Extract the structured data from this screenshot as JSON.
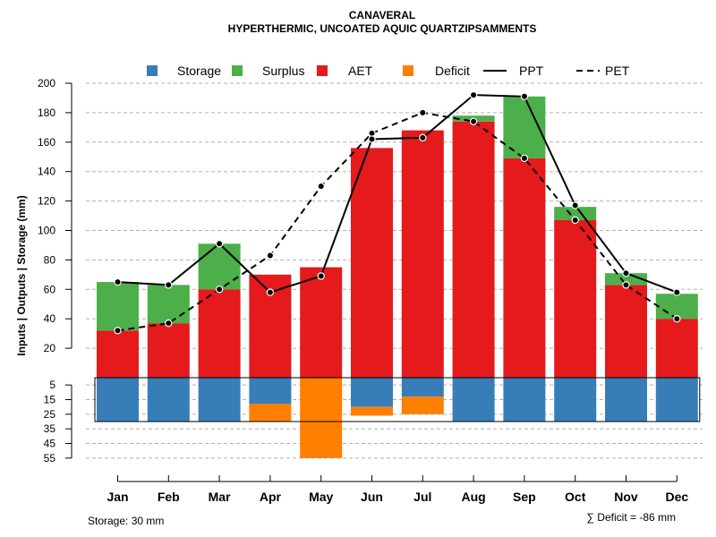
{
  "chart_data": {
    "type": "bar",
    "title": "CANAVERAL",
    "subtitle": "HYPERTHERMIC, UNCOATED AQUIC QUARTZIPSAMMENTS",
    "ylabel": "Inputs | Outputs | Storage    (mm)",
    "categories": [
      "Jan",
      "Feb",
      "Mar",
      "Apr",
      "May",
      "Jun",
      "Jul",
      "Aug",
      "Sep",
      "Oct",
      "Nov",
      "Dec"
    ],
    "upper_ylim": [
      0,
      200
    ],
    "upper_ticks": [
      "20",
      "40",
      "60",
      "80",
      "100",
      "120",
      "140",
      "160",
      "180",
      "200"
    ],
    "lower_ticks": [
      "5",
      "15",
      "25",
      "35",
      "45",
      "55"
    ],
    "series": [
      {
        "name": "Storage",
        "color": "#377EB8",
        "values": [
          30,
          30,
          30,
          18,
          0,
          20,
          13,
          30,
          30,
          30,
          30,
          30
        ]
      },
      {
        "name": "Surplus",
        "color": "#4DAF4A",
        "values": [
          33,
          26,
          31,
          0,
          0,
          0,
          0,
          4,
          42,
          9,
          8,
          17
        ]
      },
      {
        "name": "AET",
        "color": "#E41A1C",
        "values": [
          32,
          37,
          60,
          70,
          75,
          156,
          168,
          174,
          149,
          107,
          63,
          40
        ]
      },
      {
        "name": "Deficit",
        "color": "#FF7F00",
        "values": [
          0,
          0,
          0,
          12,
          55,
          6,
          12,
          0,
          0,
          0,
          0,
          0
        ]
      },
      {
        "name": "PPT",
        "color": "#000000",
        "style": "solid",
        "values": [
          65,
          63,
          91,
          58,
          69,
          162,
          163,
          192,
          191,
          117,
          71,
          58
        ]
      },
      {
        "name": "PET",
        "color": "#000000",
        "style": "dashed",
        "values": [
          32,
          37,
          60,
          83,
          130,
          166,
          180,
          174,
          149,
          107,
          63,
          40
        ]
      }
    ],
    "legend": [
      "Storage",
      "Surplus",
      "AET",
      "Deficit",
      "PPT",
      "PET"
    ],
    "storage_capacity": 30,
    "footer_left": "Storage: 30 mm",
    "footer_right": "∑ Deficit = -86 mm"
  }
}
